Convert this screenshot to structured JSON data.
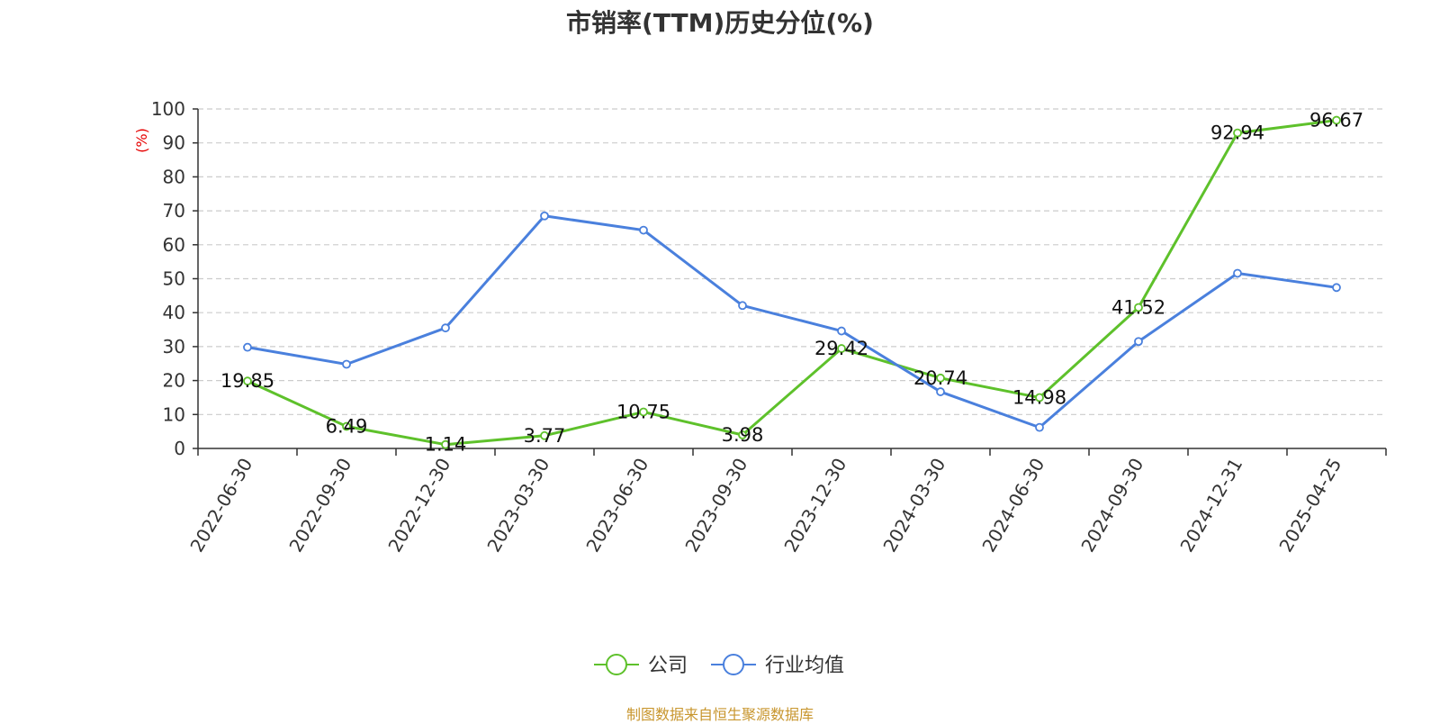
{
  "title": "市销率(TTM)历史分位(%)",
  "source": "制图数据来自恒生聚源数据库",
  "chart_data": {
    "type": "line",
    "title": "市销率(TTM)历史分位(%)",
    "ylabel": "(%)",
    "xlabel": "",
    "ylim": [
      0,
      100
    ],
    "yticks": [
      0,
      10,
      20,
      30,
      40,
      50,
      60,
      70,
      80,
      90,
      100
    ],
    "grid": true,
    "legend_position": "bottom-center",
    "categories": [
      "2022-06-30",
      "2022-09-30",
      "2022-12-30",
      "2023-03-30",
      "2023-06-30",
      "2023-09-30",
      "2023-12-30",
      "2024-03-30",
      "2024-06-30",
      "2024-09-30",
      "2024-12-31",
      "2025-04-25"
    ],
    "series": [
      {
        "name": "公司",
        "color": "#5ec12b",
        "values": [
          19.85,
          6.49,
          1.14,
          3.77,
          10.75,
          3.98,
          29.42,
          20.74,
          14.98,
          41.52,
          92.94,
          96.67
        ],
        "labels": [
          "19.85",
          "6.49",
          "1.14",
          "3.77",
          "10.75",
          "3.98",
          "29.42",
          "20.74",
          "14.98",
          "41.52",
          "92.94",
          "96.67"
        ]
      },
      {
        "name": "行业均值",
        "color": "#4a80dd",
        "values": [
          29.8,
          24.8,
          35.5,
          68.5,
          64.3,
          42.1,
          34.6,
          16.7,
          6.2,
          31.5,
          51.6,
          47.4
        ]
      }
    ]
  }
}
